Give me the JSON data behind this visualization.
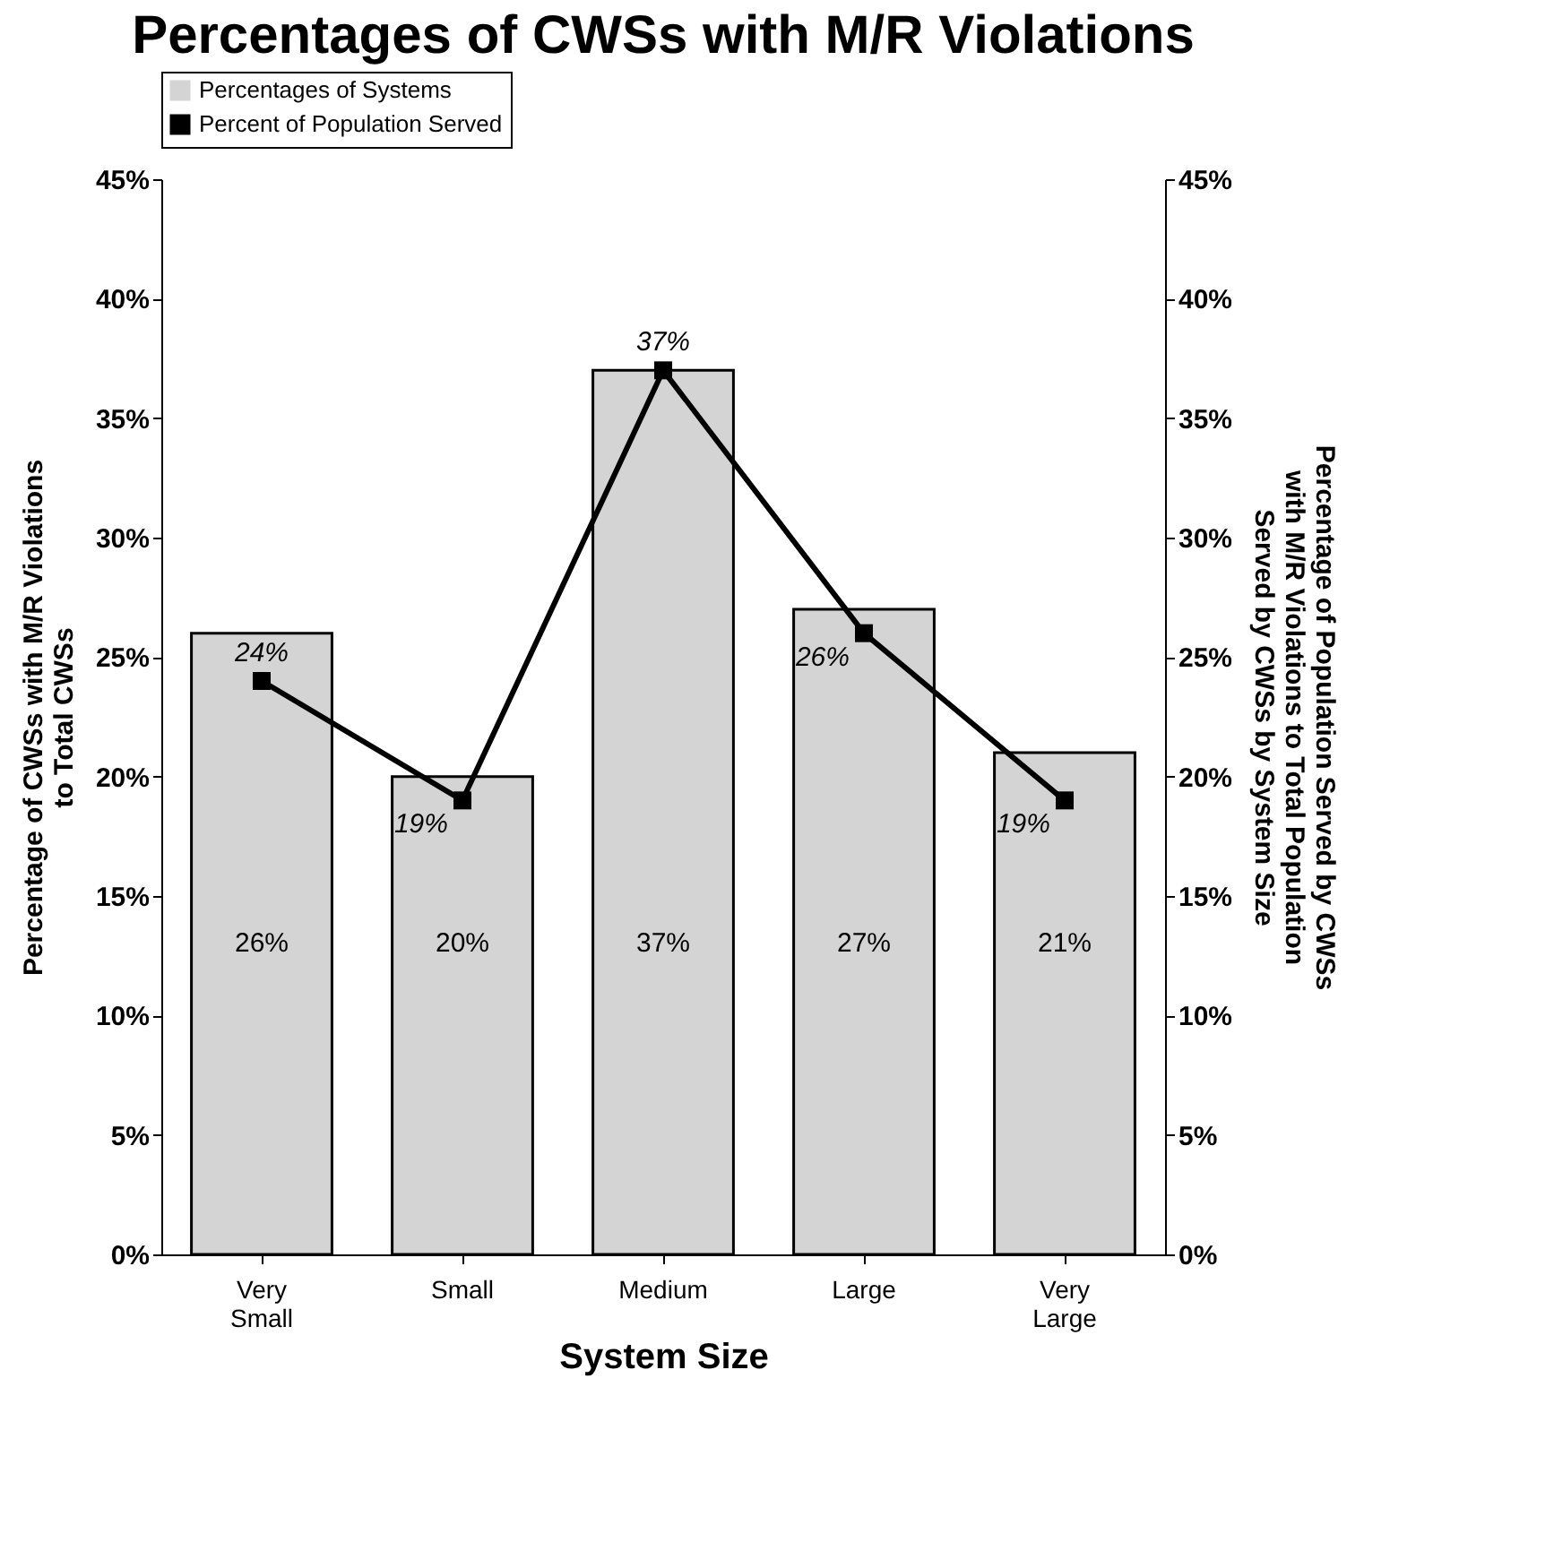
{
  "chart_data": {
    "type": "bar",
    "title": "Percentages of CWSs with M/R Violations",
    "xlabel": "System Size",
    "ylabel": "Percentage of CWSs with M/R Violations to Total CWSs",
    "y2label": "Percentage of Population Served by CWSs with M/R Violations to Total Population Served by CWSs by System Size",
    "categories": [
      "Very Small",
      "Small",
      "Medium",
      "Large",
      "Very Large"
    ],
    "series": [
      {
        "name": "Percentages of Systems",
        "color": "#d4d4d4",
        "values": [
          26,
          20,
          37,
          27,
          21
        ],
        "value_labels": [
          "26%",
          "20%",
          "37%",
          "27%",
          "21%"
        ]
      },
      {
        "name": "Percent of Population Served",
        "type": "line",
        "axis": "y2",
        "color": "#000000",
        "marker": "square",
        "line_style": "solid",
        "values": [
          24,
          19,
          37,
          26,
          19
        ],
        "value_labels": [
          "24%",
          "19%",
          "37%",
          "26%",
          "19%"
        ]
      }
    ],
    "ylim": [
      0,
      45
    ],
    "yticks": [
      {
        "value": 0,
        "label": "0%"
      },
      {
        "value": 5,
        "label": "5%"
      },
      {
        "value": 10,
        "label": "10%"
      },
      {
        "value": 15,
        "label": "15%"
      },
      {
        "value": 20,
        "label": "20%"
      },
      {
        "value": 25,
        "label": "25%"
      },
      {
        "value": 30,
        "label": "30%"
      },
      {
        "value": 35,
        "label": "35%"
      },
      {
        "value": 40,
        "label": "40%"
      },
      {
        "value": 45,
        "label": "45%"
      }
    ],
    "y2lim": [
      0,
      45
    ],
    "y2ticks": [
      {
        "value": 0,
        "label": "0%"
      },
      {
        "value": 5,
        "label": "5%"
      },
      {
        "value": 10,
        "label": "10%"
      },
      {
        "value": 15,
        "label": "15%"
      },
      {
        "value": 20,
        "label": "20%"
      },
      {
        "value": 25,
        "label": "25%"
      },
      {
        "value": 30,
        "label": "30%"
      },
      {
        "value": 35,
        "label": "35%"
      },
      {
        "value": 40,
        "label": "40%"
      },
      {
        "value": 45,
        "label": "45%"
      }
    ],
    "legend": "top",
    "grid": false
  }
}
